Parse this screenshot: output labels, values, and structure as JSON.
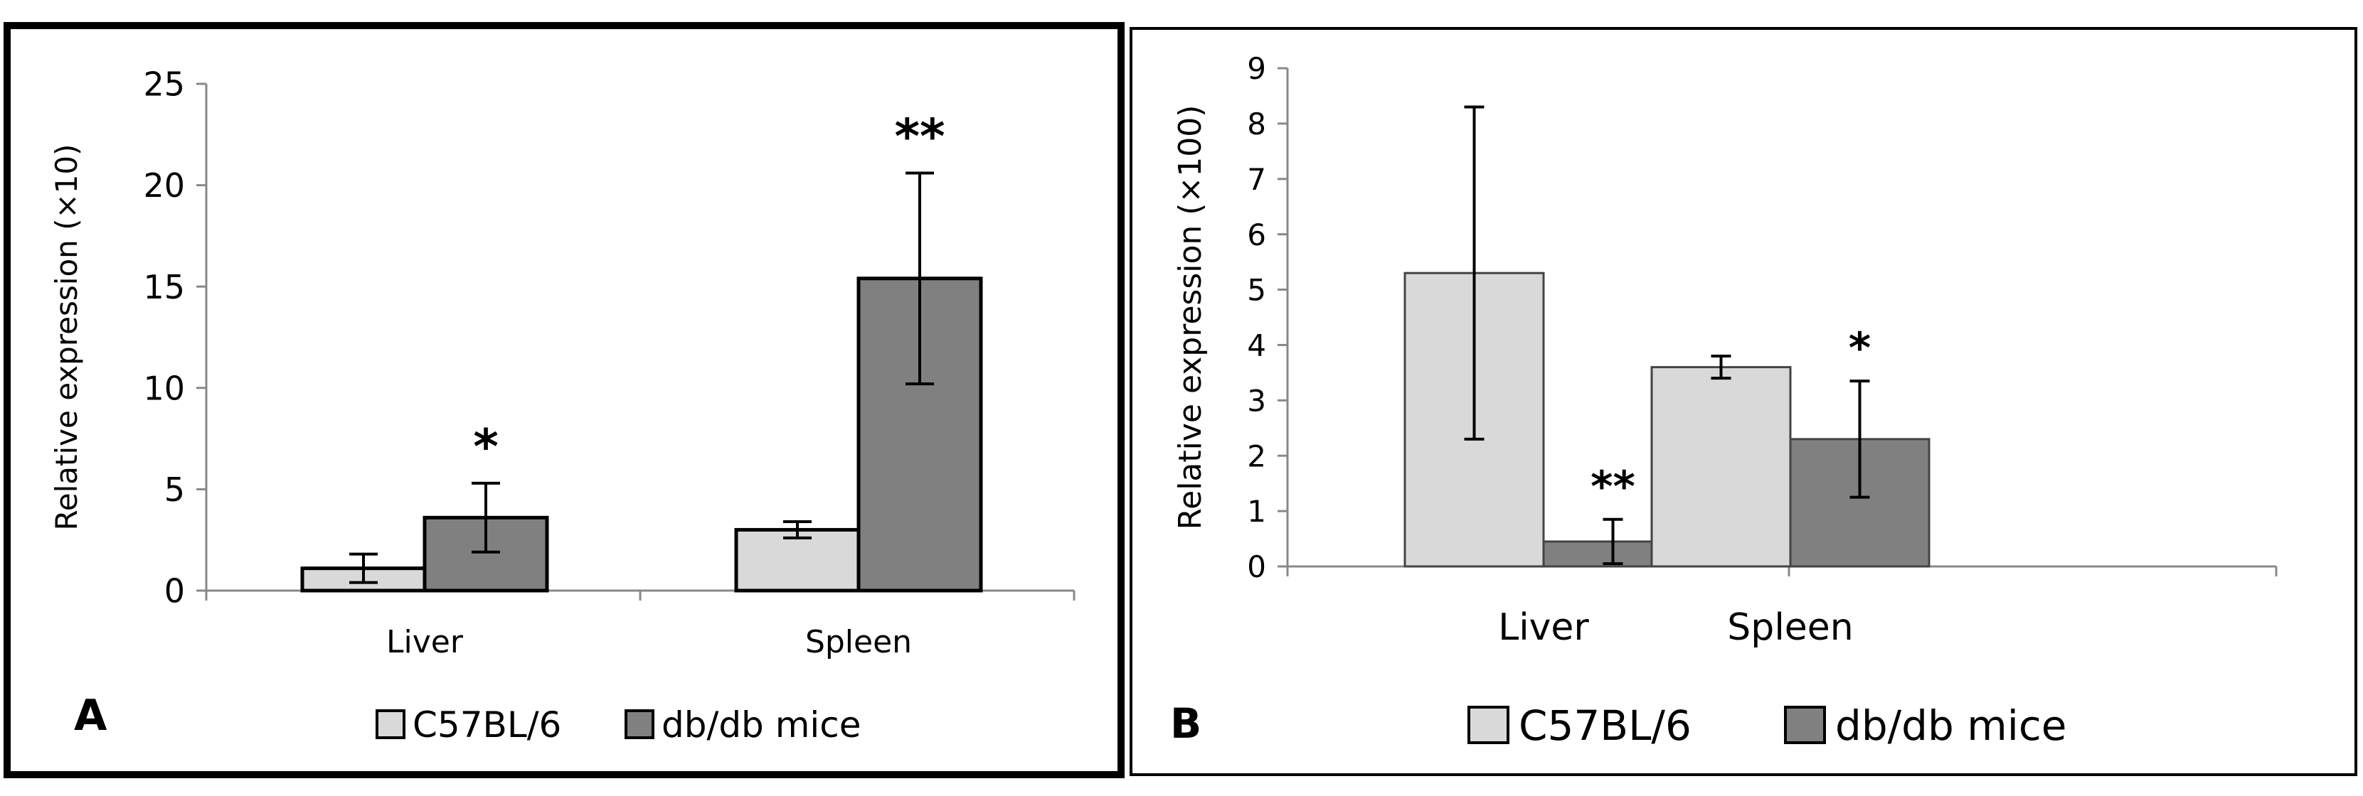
{
  "chart_data": [
    {
      "panel": "A",
      "type": "bar",
      "ylabel": "Relative expression  (×10)",
      "ylim": [
        0,
        25
      ],
      "yticks": [
        0,
        5,
        10,
        15,
        20,
        25
      ],
      "categories": [
        "Liver",
        "Spleen"
      ],
      "series": [
        {
          "name": "C57BL/6",
          "color": "#d9d9d9",
          "values": [
            1.1,
            3.0
          ],
          "errors": [
            0.7,
            0.4
          ]
        },
        {
          "name": "db/db mice",
          "color": "#808080",
          "values": [
            3.6,
            15.4
          ],
          "errors": [
            1.7,
            5.2
          ]
        }
      ],
      "annotations": [
        {
          "category": "Liver",
          "series": "db/db mice",
          "text": "*"
        },
        {
          "category": "Spleen",
          "series": "db/db mice",
          "text": "**"
        }
      ],
      "legend": "bottom",
      "grid": false
    },
    {
      "panel": "B",
      "type": "bar",
      "ylabel": "Relative expression  (×100)",
      "ylim": [
        0,
        9
      ],
      "yticks": [
        0,
        1,
        2,
        3,
        4,
        5,
        6,
        7,
        8,
        9
      ],
      "categories": [
        "Liver",
        "Spleen"
      ],
      "series": [
        {
          "name": "C57BL/6",
          "color": "#d9d9d9",
          "values": [
            5.3,
            3.6
          ],
          "errors": [
            3.0,
            0.2
          ]
        },
        {
          "name": "db/db mice",
          "color": "#808080",
          "values": [
            0.45,
            2.3
          ],
          "errors": [
            0.4,
            1.05
          ]
        }
      ],
      "annotations": [
        {
          "category": "Liver",
          "series": "db/db mice",
          "text": "**"
        },
        {
          "category": "Spleen",
          "series": "db/db mice",
          "text": "*"
        }
      ],
      "legend": "bottom",
      "grid": false
    }
  ]
}
